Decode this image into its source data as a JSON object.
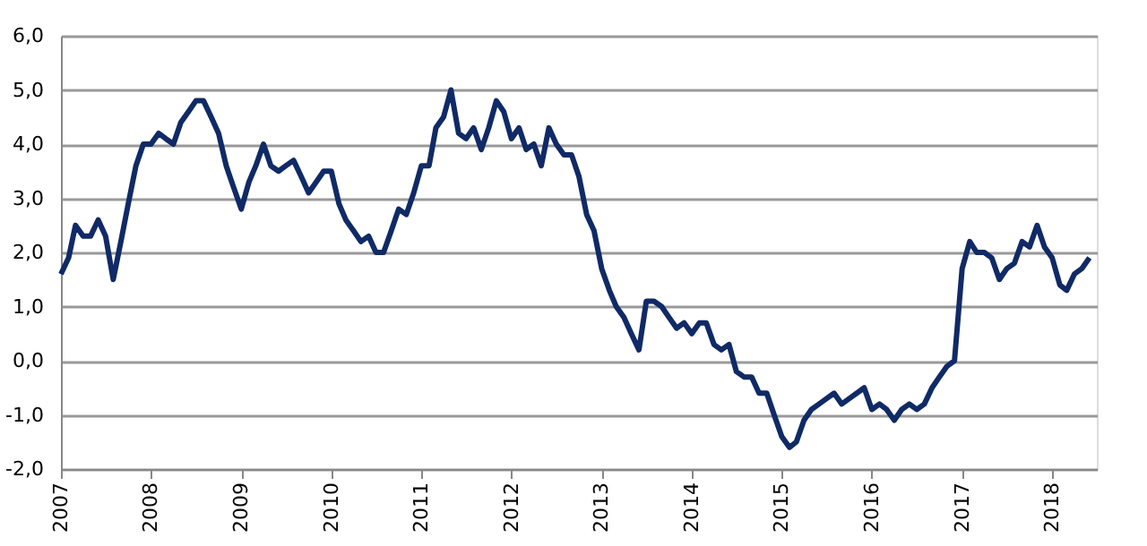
{
  "chart_data": {
    "type": "line",
    "x": [
      "2007-01",
      "2007-02",
      "2007-03",
      "2007-04",
      "2007-05",
      "2007-06",
      "2007-07",
      "2007-08",
      "2007-09",
      "2007-10",
      "2007-11",
      "2007-12",
      "2008-01",
      "2008-02",
      "2008-03",
      "2008-04",
      "2008-05",
      "2008-06",
      "2008-07",
      "2008-08",
      "2008-09",
      "2008-10",
      "2008-11",
      "2008-12",
      "2009-01",
      "2009-02",
      "2009-03",
      "2009-04",
      "2009-05",
      "2009-06",
      "2009-07",
      "2009-08",
      "2009-09",
      "2009-10",
      "2009-11",
      "2009-12",
      "2010-01",
      "2010-02",
      "2010-03",
      "2010-04",
      "2010-05",
      "2010-06",
      "2010-07",
      "2010-08",
      "2010-09",
      "2010-10",
      "2010-11",
      "2010-12",
      "2011-01",
      "2011-02",
      "2011-03",
      "2011-04",
      "2011-05",
      "2011-06",
      "2011-07",
      "2011-08",
      "2011-09",
      "2011-10",
      "2011-11",
      "2011-12",
      "2012-01",
      "2012-02",
      "2012-03",
      "2012-04",
      "2012-05",
      "2012-06",
      "2012-07",
      "2012-08",
      "2012-09",
      "2012-10",
      "2012-11",
      "2012-12",
      "2013-01",
      "2013-02",
      "2013-03",
      "2013-04",
      "2013-05",
      "2013-06",
      "2013-07",
      "2013-08",
      "2013-09",
      "2013-10",
      "2013-11",
      "2013-12",
      "2014-01",
      "2014-02",
      "2014-03",
      "2014-04",
      "2014-05",
      "2014-06",
      "2014-07",
      "2014-08",
      "2014-09",
      "2014-10",
      "2014-11",
      "2014-12",
      "2015-01",
      "2015-02",
      "2015-03",
      "2015-04",
      "2015-05",
      "2015-06",
      "2015-07",
      "2015-08",
      "2015-09",
      "2015-10",
      "2015-11",
      "2015-12",
      "2016-01",
      "2016-02",
      "2016-03",
      "2016-04",
      "2016-05",
      "2016-06",
      "2016-07",
      "2016-08",
      "2016-09",
      "2016-10",
      "2016-11",
      "2016-12",
      "2017-01",
      "2017-02",
      "2017-03",
      "2017-04",
      "2017-05",
      "2017-06",
      "2017-07",
      "2017-08",
      "2017-09",
      "2017-10",
      "2017-11",
      "2017-12",
      "2018-01",
      "2018-02",
      "2018-03",
      "2018-04",
      "2018-05",
      "2018-06"
    ],
    "series": [
      {
        "color": "#0f2a66",
        "values": [
          1.6,
          1.9,
          2.5,
          2.3,
          2.3,
          2.6,
          2.3,
          1.5,
          2.2,
          2.9,
          3.6,
          4.0,
          4.0,
          4.2,
          4.1,
          4.0,
          4.4,
          4.6,
          4.8,
          4.8,
          4.5,
          4.2,
          3.6,
          3.2,
          2.8,
          3.3,
          3.6,
          4.0,
          3.6,
          3.5,
          3.6,
          3.7,
          3.4,
          3.1,
          3.3,
          3.5,
          3.5,
          2.9,
          2.6,
          2.4,
          2.2,
          2.3,
          2.0,
          2.0,
          2.4,
          2.8,
          2.7,
          3.1,
          3.6,
          3.6,
          4.3,
          4.5,
          5.0,
          4.2,
          4.1,
          4.3,
          3.9,
          4.3,
          4.8,
          4.6,
          4.1,
          4.3,
          3.9,
          4.0,
          3.6,
          4.3,
          4.0,
          3.8,
          3.8,
          3.4,
          2.7,
          2.4,
          1.7,
          1.3,
          1.0,
          0.8,
          0.5,
          0.2,
          1.1,
          1.1,
          1.0,
          0.8,
          0.6,
          0.7,
          0.5,
          0.7,
          0.7,
          0.3,
          0.2,
          0.3,
          -0.2,
          -0.3,
          -0.3,
          -0.6,
          -0.6,
          -1.0,
          -1.4,
          -1.6,
          -1.5,
          -1.1,
          -0.9,
          -0.8,
          -0.7,
          -0.6,
          -0.8,
          -0.7,
          -0.6,
          -0.5,
          -0.9,
          -0.8,
          -0.9,
          -1.1,
          -0.9,
          -0.8,
          -0.9,
          -0.8,
          -0.5,
          -0.3,
          -0.1,
          0.0,
          1.7,
          2.2,
          2.0,
          2.0,
          1.9,
          1.5,
          1.7,
          1.8,
          2.2,
          2.1,
          2.5,
          2.1,
          1.9,
          1.4,
          1.3,
          1.6,
          1.7,
          1.9
        ]
      }
    ],
    "xlim": [
      "2007-01",
      "2018-07"
    ],
    "xticks": [
      "2007",
      "2008",
      "2009",
      "2010",
      "2011",
      "2012",
      "2013",
      "2014",
      "2015",
      "2016",
      "2017",
      "2018"
    ],
    "ylim": [
      -2.0,
      6.0
    ],
    "yticks": [
      {
        "value": -2,
        "label": "-2,0"
      },
      {
        "value": -1,
        "label": "-1,0"
      },
      {
        "value": 0,
        "label": "0,0"
      },
      {
        "value": 1,
        "label": "1,0"
      },
      {
        "value": 2,
        "label": "2,0"
      },
      {
        "value": 3,
        "label": "3,0"
      },
      {
        "value": 4,
        "label": "4,0"
      },
      {
        "value": 5,
        "label": "5,0"
      },
      {
        "value": 6,
        "label": "6,0"
      }
    ],
    "grid": "y",
    "legend": false,
    "marker": "none",
    "line_style": "solid"
  }
}
